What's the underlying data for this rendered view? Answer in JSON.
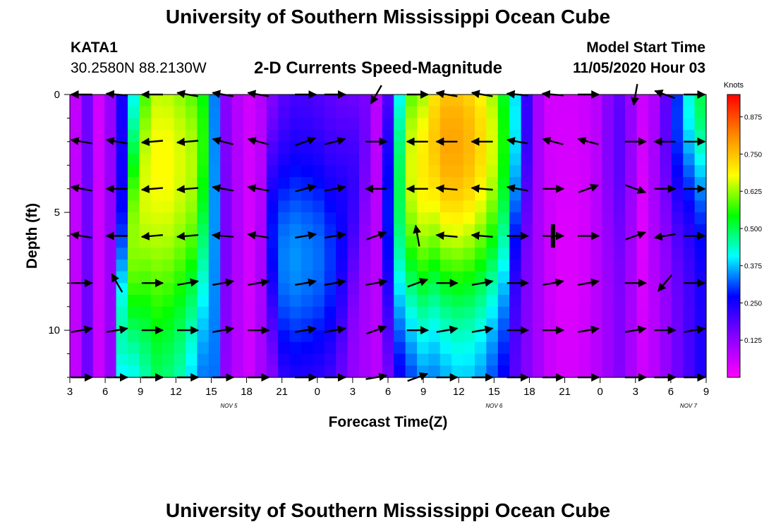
{
  "header": {
    "title": "University of Southern Mississippi Ocean Cube",
    "station_id": "KATA1",
    "coordinates": "30.2580N 88.2130W",
    "subtitle": "2-D Currents Speed-Magnitude",
    "model_start_label": "Model Start Time",
    "model_start_value": "11/05/2020 Hour 03"
  },
  "footer": {
    "title": "University of Southern Mississippi Ocean Cube"
  },
  "chart_data": {
    "type": "heatmap",
    "title": "2-D Currents Speed-Magnitude",
    "xlabel": "Forecast Time(Z)",
    "ylabel": "Depth (ft)",
    "x_ticks": [
      "3",
      "6",
      "9",
      "12",
      "15",
      "18",
      "21",
      "0",
      "3",
      "6",
      "9",
      "12",
      "15",
      "18",
      "21",
      "0",
      "3",
      "6",
      "9"
    ],
    "date_labels": [
      {
        "label": "NOV 5",
        "hour": 13.5
      },
      {
        "label": "NOV 6",
        "hour": 36
      },
      {
        "label": "NOV 7",
        "hour": 52.5
      }
    ],
    "x_range_hours": [
      0,
      54
    ],
    "y_ticks": [
      "0",
      "5",
      "10"
    ],
    "y_tick_values": [
      0,
      5,
      10
    ],
    "y_range_ft": [
      0,
      12
    ],
    "colorbar": {
      "label": "Knots",
      "range": [
        0,
        0.95
      ],
      "ticks": [
        "0.125",
        "0.250",
        "0.375",
        "0.500",
        "0.625",
        "0.750",
        "0.875"
      ],
      "tick_values": [
        0.125,
        0.25,
        0.375,
        0.5,
        0.625,
        0.75,
        0.875
      ],
      "colors": [
        "#ff00ff",
        "#8800ff",
        "#0000ff",
        "#00ffff",
        "#00ff00",
        "#ffff00",
        "#ff8800",
        "#ff0000"
      ]
    },
    "time_slots": [
      {
        "bg": 0.07,
        "peak": 0.07,
        "center": 0,
        "sigma": 3
      },
      {
        "bg": 0.16,
        "peak": 0.16,
        "center": 0,
        "sigma": 3
      },
      {
        "bg": 0.06,
        "peak": 0.05,
        "center": 0,
        "sigma": 3
      },
      {
        "bg": 0.12,
        "peak": 0.12,
        "center": 0,
        "sigma": 3
      },
      {
        "bg": 0.25,
        "peak": 0.45,
        "center": 10,
        "sigma": 2.5
      },
      {
        "bg": 0.35,
        "peak": 0.62,
        "center": 6,
        "sigma": 3.5
      },
      {
        "bg": 0.4,
        "peak": 0.66,
        "center": 4,
        "sigma": 4.5
      },
      {
        "bg": 0.45,
        "peak": 0.68,
        "center": 3,
        "sigma": 5
      },
      {
        "bg": 0.43,
        "peak": 0.68,
        "center": 3,
        "sigma": 5
      },
      {
        "bg": 0.4,
        "peak": 0.66,
        "center": 3,
        "sigma": 5
      },
      {
        "bg": 0.33,
        "peak": 0.64,
        "center": 3,
        "sigma": 5
      },
      {
        "bg": 0.3,
        "peak": 0.56,
        "center": 2,
        "sigma": 5
      },
      {
        "bg": 0.32,
        "peak": 0.35,
        "center": 5,
        "sigma": 5
      },
      {
        "bg": 0.12,
        "peak": 0.15,
        "center": 5,
        "sigma": 4
      },
      {
        "bg": 0.08,
        "peak": 0.09,
        "center": 5,
        "sigma": 4
      },
      {
        "bg": 0.06,
        "peak": 0.05,
        "center": 5,
        "sigma": 4
      },
      {
        "bg": 0.1,
        "peak": 0.08,
        "center": 2,
        "sigma": 3
      },
      {
        "bg": 0.12,
        "peak": 0.28,
        "center": 6,
        "sigma": 3
      },
      {
        "bg": 0.16,
        "peak": 0.34,
        "center": 7,
        "sigma": 3.5
      },
      {
        "bg": 0.18,
        "peak": 0.35,
        "center": 7,
        "sigma": 3.5
      },
      {
        "bg": 0.18,
        "peak": 0.34,
        "center": 7,
        "sigma": 3.5
      },
      {
        "bg": 0.17,
        "peak": 0.33,
        "center": 7,
        "sigma": 3.5
      },
      {
        "bg": 0.16,
        "peak": 0.3,
        "center": 7,
        "sigma": 3.5
      },
      {
        "bg": 0.14,
        "peak": 0.26,
        "center": 6,
        "sigma": 3.5
      },
      {
        "bg": 0.12,
        "peak": 0.22,
        "center": 4,
        "sigma": 3
      },
      {
        "bg": 0.1,
        "peak": 0.16,
        "center": 2,
        "sigma": 3
      },
      {
        "bg": 0.08,
        "peak": 0.08,
        "center": 0,
        "sigma": 3
      },
      {
        "bg": 0.12,
        "peak": 0.28,
        "center": 5,
        "sigma": 4
      },
      {
        "bg": 0.16,
        "peak": 0.5,
        "center": 4,
        "sigma": 5
      },
      {
        "bg": 0.22,
        "peak": 0.66,
        "center": 3,
        "sigma": 5
      },
      {
        "bg": 0.26,
        "peak": 0.7,
        "center": 3,
        "sigma": 5
      },
      {
        "bg": 0.28,
        "peak": 0.74,
        "center": 2,
        "sigma": 5
      },
      {
        "bg": 0.3,
        "peak": 0.78,
        "center": 2,
        "sigma": 5
      },
      {
        "bg": 0.32,
        "peak": 0.78,
        "center": 2,
        "sigma": 5
      },
      {
        "bg": 0.32,
        "peak": 0.76,
        "center": 2,
        "sigma": 5
      },
      {
        "bg": 0.3,
        "peak": 0.72,
        "center": 2,
        "sigma": 5
      },
      {
        "bg": 0.26,
        "peak": 0.66,
        "center": 2,
        "sigma": 5
      },
      {
        "bg": 0.22,
        "peak": 0.55,
        "center": 2,
        "sigma": 5
      },
      {
        "bg": 0.18,
        "peak": 0.4,
        "center": 1,
        "sigma": 4
      },
      {
        "bg": 0.14,
        "peak": 0.22,
        "center": 1,
        "sigma": 3
      },
      {
        "bg": 0.1,
        "peak": 0.1,
        "center": 0,
        "sigma": 3
      },
      {
        "bg": 0.06,
        "peak": 0.05,
        "center": 0,
        "sigma": 3
      },
      {
        "bg": 0.05,
        "peak": 0.04,
        "center": 7,
        "sigma": 3
      },
      {
        "bg": 0.05,
        "peak": 0.04,
        "center": 7,
        "sigma": 3
      },
      {
        "bg": 0.06,
        "peak": 0.05,
        "center": 6,
        "sigma": 3
      },
      {
        "bg": 0.08,
        "peak": 0.08,
        "center": 6,
        "sigma": 3
      },
      {
        "bg": 0.11,
        "peak": 0.14,
        "center": 2,
        "sigma": 3
      },
      {
        "bg": 0.14,
        "peak": 0.18,
        "center": 2,
        "sigma": 3
      },
      {
        "bg": 0.1,
        "peak": 0.12,
        "center": 2,
        "sigma": 3
      },
      {
        "bg": 0.06,
        "peak": 0.04,
        "center": 6,
        "sigma": 3
      },
      {
        "bg": 0.08,
        "peak": 0.1,
        "center": 3,
        "sigma": 3
      },
      {
        "bg": 0.12,
        "peak": 0.18,
        "center": 1,
        "sigma": 3
      },
      {
        "bg": 0.16,
        "peak": 0.3,
        "center": 1,
        "sigma": 3
      },
      {
        "bg": 0.2,
        "peak": 0.42,
        "center": 0,
        "sigma": 3
      },
      {
        "bg": 0.24,
        "peak": 0.5,
        "center": 0,
        "sigma": 3
      }
    ],
    "vector_columns_hours": [
      1,
      4,
      7,
      10,
      13,
      16,
      20,
      22.5,
      26,
      29.5,
      32,
      35,
      38,
      41,
      44,
      48,
      50.5,
      53
    ],
    "vector_rows_ft": [
      0,
      2,
      4,
      6,
      8,
      10,
      12
    ],
    "vector_angles_deg": [
      [
        180,
        175,
        180,
        170,
        170,
        170,
        0,
        0,
        240,
        0,
        170,
        170,
        175,
        175,
        0,
        260,
        160,
        0
      ],
      [
        170,
        170,
        185,
        185,
        165,
        165,
        20,
        15,
        0,
        180,
        180,
        180,
        170,
        165,
        165,
        0,
        180,
        0
      ],
      [
        170,
        180,
        185,
        185,
        170,
        170,
        15,
        10,
        180,
        180,
        175,
        175,
        170,
        0,
        20,
        340,
        0,
        0
      ],
      [
        170,
        180,
        185,
        185,
        175,
        170,
        10,
        10,
        20,
        100,
        175,
        175,
        0,
        0,
        0,
        20,
        190,
        0
      ],
      [
        0,
        120,
        0,
        10,
        10,
        10,
        10,
        10,
        10,
        20,
        0,
        10,
        0,
        10,
        10,
        0,
        230,
        0
      ],
      [
        10,
        10,
        0,
        0,
        10,
        0,
        10,
        10,
        20,
        0,
        10,
        10,
        0,
        0,
        10,
        10,
        0,
        10
      ],
      [
        0,
        0,
        0,
        0,
        0,
        0,
        0,
        0,
        10,
        20,
        0,
        0,
        0,
        0,
        0,
        0,
        0,
        0
      ]
    ]
  }
}
